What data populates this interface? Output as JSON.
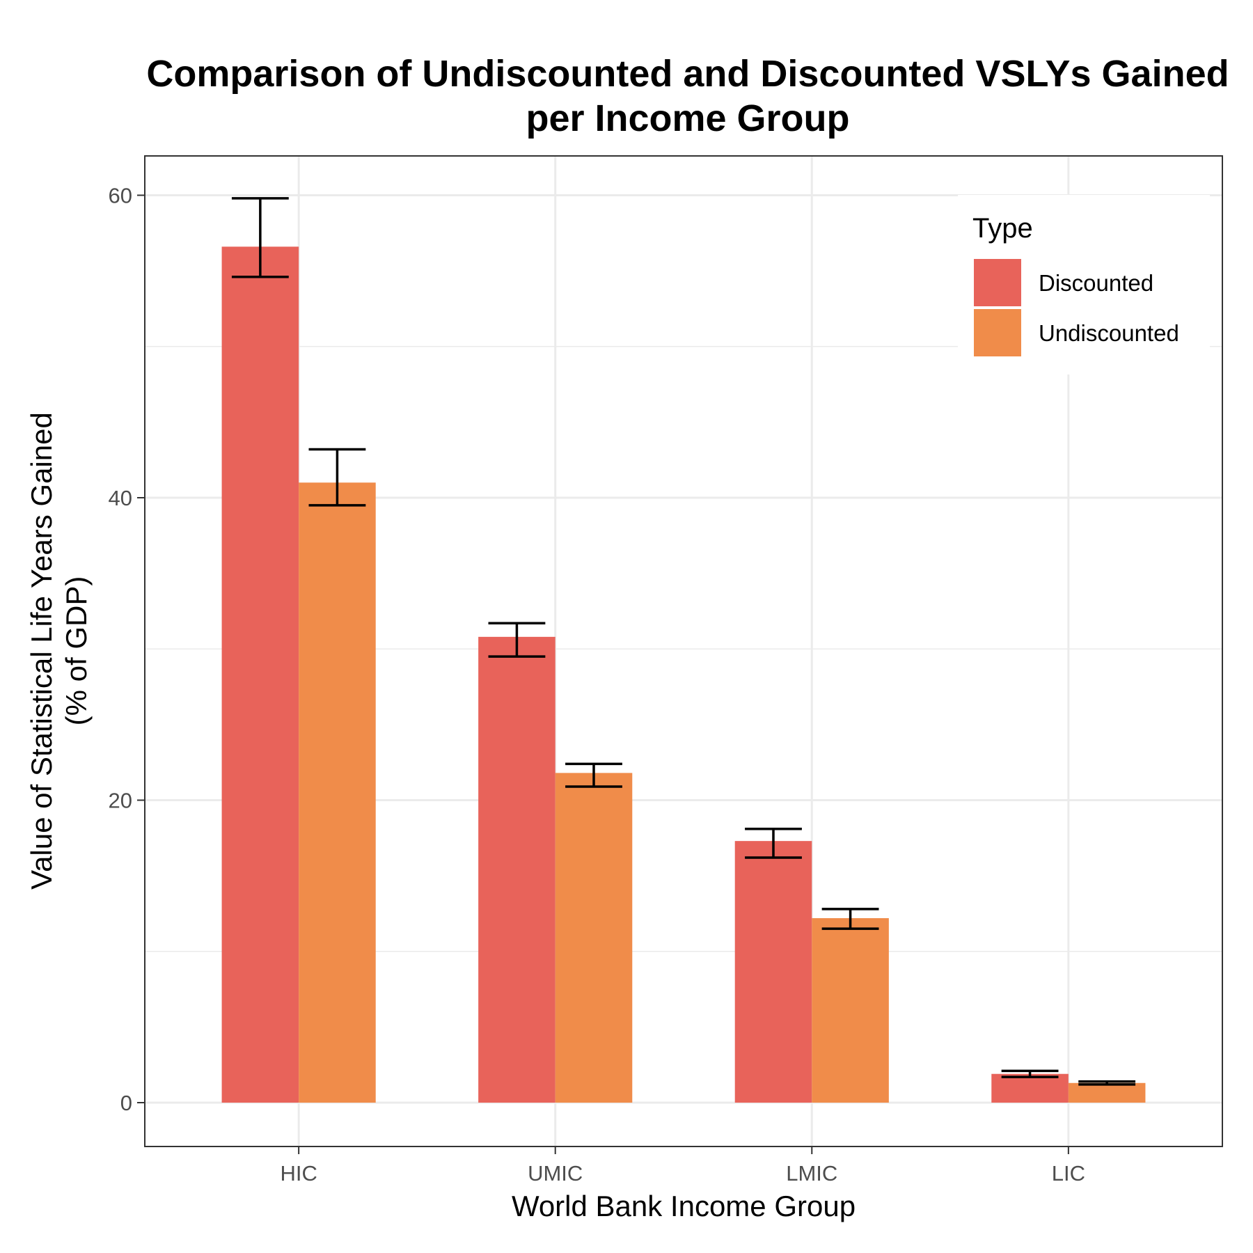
{
  "chart_data": {
    "type": "bar",
    "title_lines": [
      "Comparison of Undiscounted and Discounted VSLYs Gained",
      "per Income Group"
    ],
    "xlabel": "World Bank Income Group",
    "ylabel_lines": [
      "Value of Statistical Life Years Gained",
      "(% of GDP)"
    ],
    "categories": [
      "HIC",
      "UMIC",
      "LMIC",
      "LIC"
    ],
    "ylim": [
      -2.9,
      62.6
    ],
    "yticks": [
      0,
      20,
      40,
      60
    ],
    "grid": true,
    "legend": {
      "title": "Type",
      "position": "top-right"
    },
    "series": [
      {
        "name": "Discounted",
        "color": "#E8635A",
        "values": [
          56.6,
          30.8,
          17.3,
          1.9
        ],
        "err_low": [
          54.6,
          29.5,
          16.2,
          1.7
        ],
        "err_high": [
          59.8,
          31.7,
          18.1,
          2.1
        ]
      },
      {
        "name": "Undiscounted",
        "color": "#F08C4A",
        "values": [
          41.0,
          21.8,
          12.2,
          1.3
        ],
        "err_low": [
          39.5,
          20.9,
          11.5,
          1.2
        ],
        "err_high": [
          43.2,
          22.4,
          12.8,
          1.4
        ]
      }
    ]
  }
}
